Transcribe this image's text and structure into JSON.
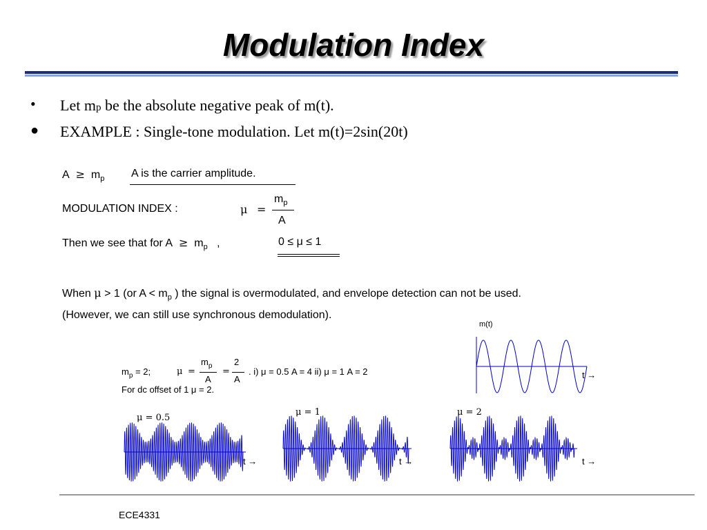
{
  "slide": {
    "title": "Modulation Index",
    "footer": "ECE4331"
  },
  "bullets": [
    {
      "marker": "•",
      "pre": "Let m",
      "sub": "p",
      "post": " be the absolute negative peak of m(t)."
    },
    {
      "marker": "●",
      "text": "EXAMPLE : Single-tone modulation. Let m(t)=2sin(20t)"
    }
  ],
  "math": {
    "cond_A": "A",
    "ge": "≥",
    "m": "m",
    "p": "p",
    "carrier_note": "A  is the carrier amplitude.",
    "mod_index_label": "MODULATION   INDEX   :",
    "mu": "μ",
    "eq": "=",
    "frac_num": "m",
    "frac_num_sub": "p",
    "frac_den": "A",
    "then_text": "Then  we see that for A",
    "then_comma": ",",
    "range": "0  ≤ μ  ≤  1",
    "when_pre": "When",
    "when_gt": "> 1  (or A <",
    "when_post": ") the signal is overmodulated, and envelope detection can not be used.",
    "however": "(However,  we can still use synchronous demodulation).",
    "ex_mp": "m",
    "ex_mp_rest": " = 2;",
    "ex_frac_num": "m",
    "ex_two_num": "2",
    "ex_frac_den": "A",
    "ex_cases": ".   i) μ  =  0.5    A = 4  ii) μ  =  1    A = 2",
    "dc_offset": "For dc offset of 1   μ  =  2."
  },
  "plots": {
    "signal_label": "m(t)",
    "t_arrow": "t →",
    "mu_labels": [
      "μ = 0.5",
      "μ = 1",
      "μ = 2"
    ],
    "signal": {
      "amplitude": 2,
      "cycles": 4
    },
    "am_waves": [
      {
        "mu": 0.5
      },
      {
        "mu": 1
      },
      {
        "mu": 2
      }
    ],
    "wave_color": "#0000cc",
    "axis_color": "#0000cc"
  }
}
